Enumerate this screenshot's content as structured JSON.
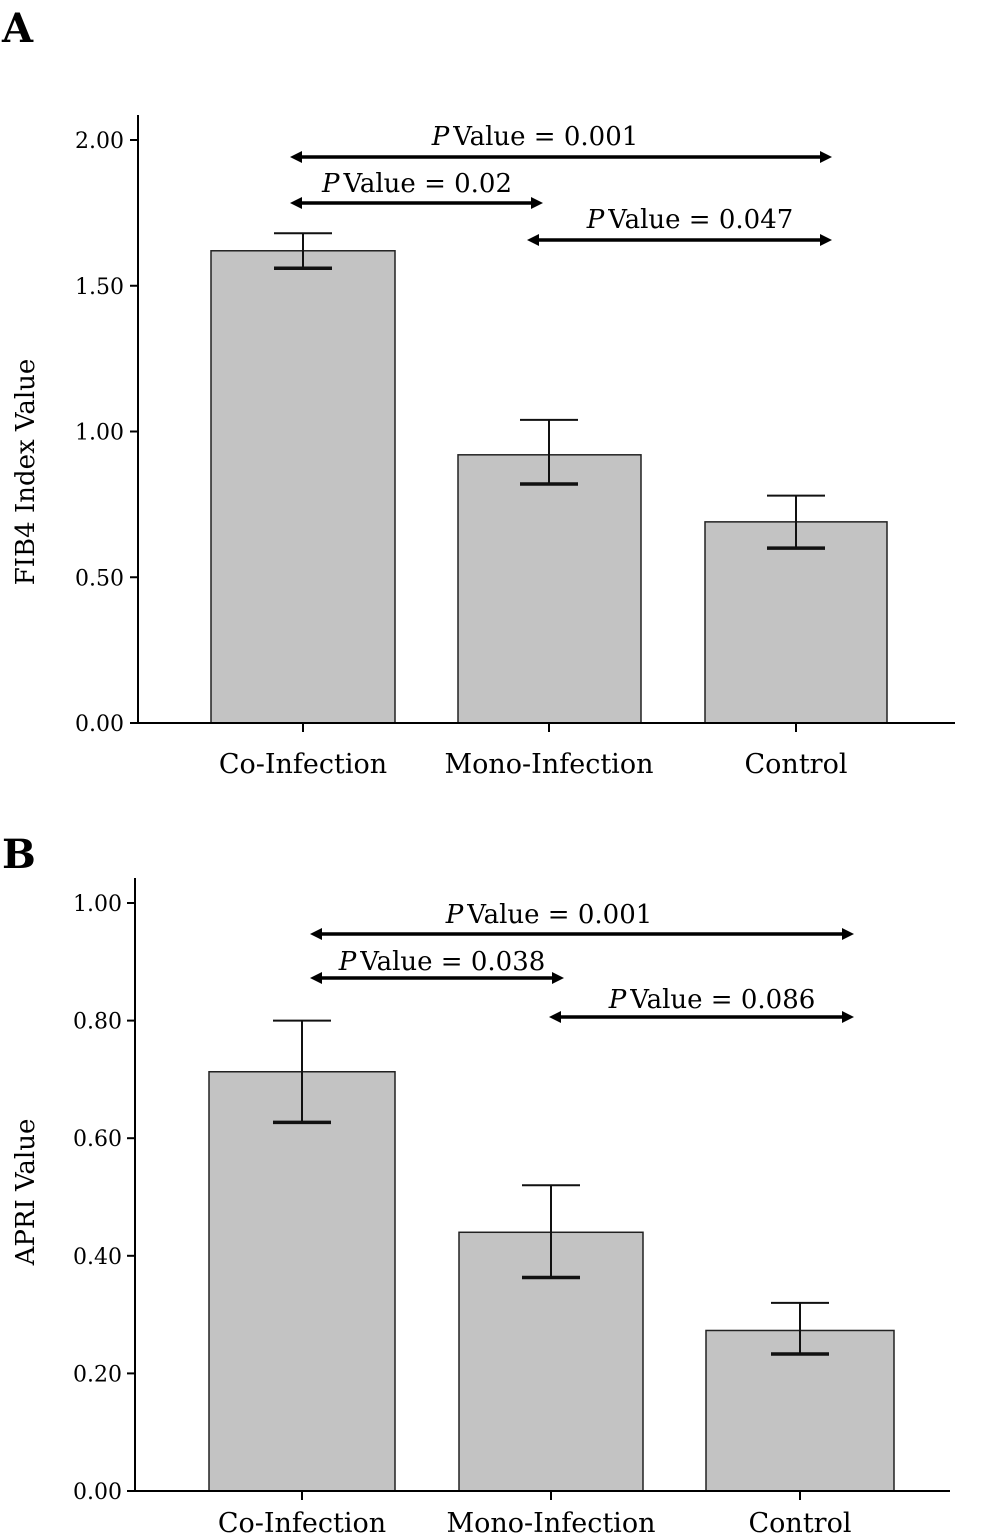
{
  "chart_data": [
    {
      "type": "bar",
      "panel_label": "A",
      "categories": [
        "Co-Infection",
        "Mono-Infection",
        "Control"
      ],
      "values": [
        1.62,
        0.92,
        0.69
      ],
      "error_upper": [
        1.68,
        1.04,
        0.78
      ],
      "error_lower": [
        1.56,
        0.82,
        0.6
      ],
      "ylabel": "FIB4 Index Value",
      "xlabel": "",
      "ylim": [
        0,
        2.0
      ],
      "yticks": [
        "0.00",
        "0.50",
        "1.00",
        "1.50",
        "2.00"
      ],
      "annotations": [
        {
          "p_label": "P",
          "text": "Value = 0.001",
          "from": 0,
          "to": 2,
          "level": 1
        },
        {
          "p_label": "P",
          "text": "Value = 0.02",
          "from": 0,
          "to": 1,
          "level": 2
        },
        {
          "p_label": "P",
          "text": "Value = 0.047",
          "from": 1,
          "to": 2,
          "level": 3
        }
      ]
    },
    {
      "type": "bar",
      "panel_label": "B",
      "categories": [
        "Co-Infection",
        "Mono-Infection",
        "Control"
      ],
      "values": [
        0.713,
        0.44,
        0.273
      ],
      "error_upper": [
        0.8,
        0.52,
        0.32
      ],
      "error_lower": [
        0.627,
        0.363,
        0.233
      ],
      "ylabel": "APRI Value",
      "xlabel": "",
      "ylim": [
        0,
        1.0
      ],
      "yticks": [
        "0.00",
        "0.20",
        "0.40",
        "0.60",
        "0.80",
        "1.00"
      ],
      "annotations": [
        {
          "p_label": "P",
          "text": "Value = 0.001",
          "from": 0,
          "to": 2,
          "level": 1
        },
        {
          "p_label": "P",
          "text": "Value = 0.038",
          "from": 0,
          "to": 1,
          "level": 2
        },
        {
          "p_label": "P",
          "text": "Value = 0.086",
          "from": 1,
          "to": 2,
          "level": 3
        }
      ]
    }
  ],
  "colors": {
    "bar_fill": "#c3c3c3",
    "bar_stroke": "#222222",
    "axis": "#000000"
  }
}
